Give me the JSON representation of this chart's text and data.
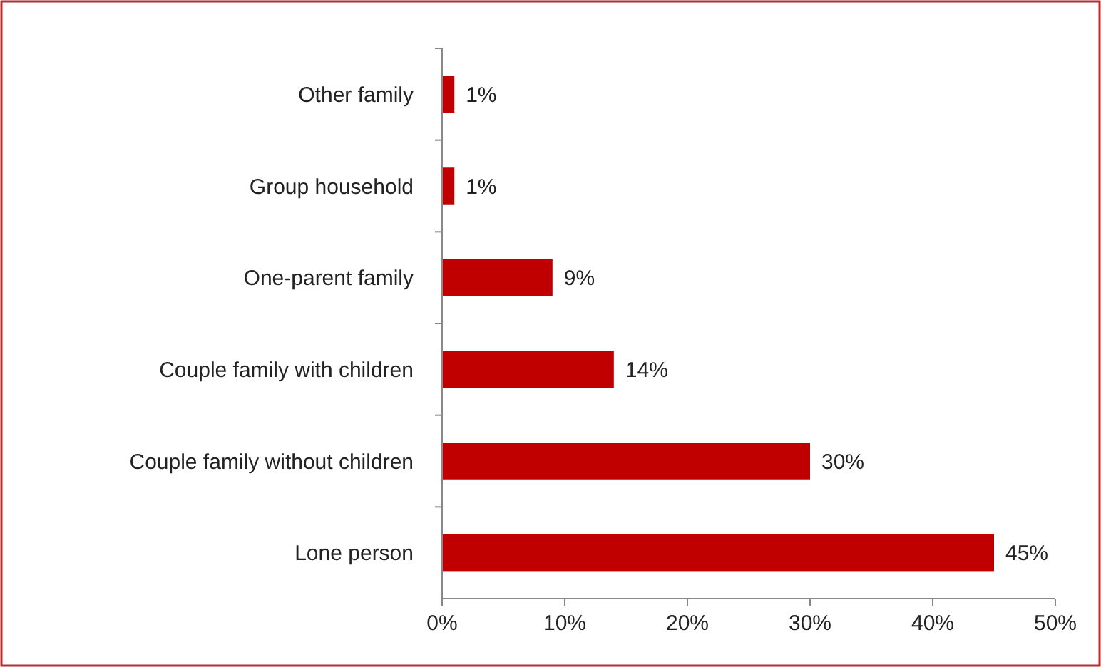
{
  "chart_data": {
    "type": "bar",
    "orientation": "horizontal",
    "categories": [
      "Other family",
      "Group household",
      "One-parent family",
      "Couple family with children",
      "Couple family without children",
      "Lone person"
    ],
    "values": [
      1,
      1,
      9,
      14,
      30,
      45
    ],
    "value_labels": [
      "1%",
      "1%",
      "9%",
      "14%",
      "30%",
      "45%"
    ],
    "color": "#c00000",
    "xlim": [
      0,
      50
    ],
    "xticks": [
      {
        "value": 0,
        "label": "0%"
      },
      {
        "value": 10,
        "label": "10%"
      },
      {
        "value": 20,
        "label": "20%"
      },
      {
        "value": 30,
        "label": "30%"
      },
      {
        "value": 40,
        "label": "40%"
      },
      {
        "value": 50,
        "label": "50%"
      }
    ],
    "grid": false
  }
}
